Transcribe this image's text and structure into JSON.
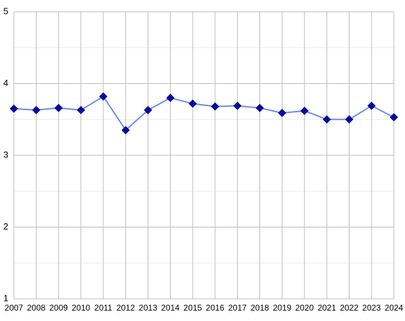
{
  "chart_data": {
    "type": "line",
    "categories": [
      "2007",
      "2008",
      "2009",
      "2010",
      "2011",
      "2012",
      "2013",
      "2014",
      "2015",
      "2016",
      "2017",
      "2018",
      "2019",
      "2020",
      "2021",
      "2022",
      "2023",
      "2024"
    ],
    "series": [
      {
        "name": "Series",
        "color": "#6b8cee",
        "marker_color": "#0a0a9c",
        "values": [
          3.65,
          3.63,
          3.66,
          3.63,
          3.82,
          3.35,
          3.63,
          3.8,
          3.72,
          3.68,
          3.69,
          3.66,
          3.59,
          3.62,
          3.5,
          3.5,
          3.69,
          3.53
        ]
      }
    ],
    "ylim": [
      1,
      5
    ],
    "yticks": [
      1,
      2,
      3,
      4,
      5
    ],
    "grid": true,
    "minor_grid": true
  }
}
